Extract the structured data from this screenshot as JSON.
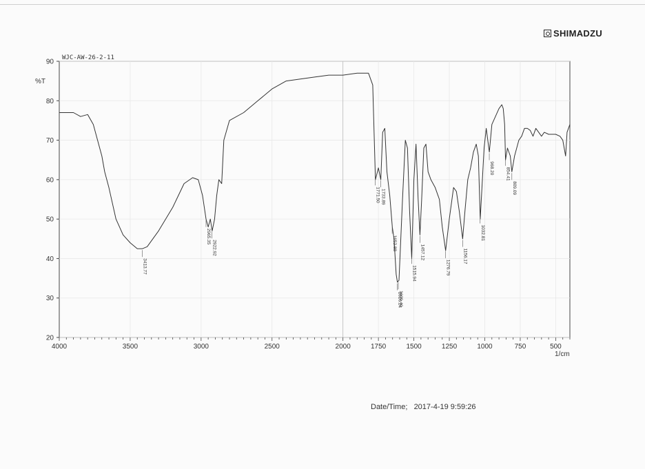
{
  "brand": "SHIMADZU",
  "logo_icon": "shimadzu-logo-icon",
  "footer": {
    "label": "Date/Time;",
    "value": "2017-4-19 9:59:26"
  },
  "chart_data": {
    "type": "line",
    "title": "WJC-AW-26-2-11",
    "ylabel": "%T",
    "xlabel": "1/cm",
    "xlim": [
      4000,
      400
    ],
    "ylim": [
      20,
      90
    ],
    "x_reversed": true,
    "x_ticks": [
      4000,
      3500,
      3000,
      2500,
      2000,
      1750,
      1500,
      1250,
      1000,
      750,
      500
    ],
    "y_ticks": [
      20,
      30,
      40,
      50,
      60,
      70,
      80,
      90
    ],
    "grid": true,
    "series": [
      {
        "color": "#333333",
        "points": [
          [
            4000,
            77
          ],
          [
            3900,
            77
          ],
          [
            3850,
            76
          ],
          [
            3800,
            76.5
          ],
          [
            3760,
            74
          ],
          [
            3730,
            70
          ],
          [
            3700,
            66
          ],
          [
            3680,
            62
          ],
          [
            3650,
            58
          ],
          [
            3600,
            50
          ],
          [
            3550,
            46
          ],
          [
            3500,
            44
          ],
          [
            3450,
            42.5
          ],
          [
            3413,
            42.5
          ],
          [
            3380,
            43
          ],
          [
            3300,
            47
          ],
          [
            3200,
            53
          ],
          [
            3120,
            59
          ],
          [
            3060,
            60.5
          ],
          [
            3020,
            60
          ],
          [
            2990,
            56
          ],
          [
            2965,
            50
          ],
          [
            2950,
            48
          ],
          [
            2935,
            50
          ],
          [
            2922,
            47
          ],
          [
            2905,
            50
          ],
          [
            2890,
            56
          ],
          [
            2875,
            60
          ],
          [
            2855,
            59
          ],
          [
            2840,
            70
          ],
          [
            2800,
            75
          ],
          [
            2700,
            77
          ],
          [
            2600,
            80
          ],
          [
            2500,
            83
          ],
          [
            2400,
            85
          ],
          [
            2300,
            85.5
          ],
          [
            2200,
            86
          ],
          [
            2100,
            86.5
          ],
          [
            2000,
            86.5
          ],
          [
            1900,
            87
          ],
          [
            1820,
            87
          ],
          [
            1790,
            84
          ],
          [
            1771,
            60
          ],
          [
            1750,
            63
          ],
          [
            1733,
            60
          ],
          [
            1720,
            72
          ],
          [
            1705,
            73
          ],
          [
            1690,
            62
          ],
          [
            1670,
            56
          ],
          [
            1652,
            48
          ],
          [
            1640,
            45
          ],
          [
            1625,
            36
          ],
          [
            1616,
            34
          ],
          [
            1605,
            34.5
          ],
          [
            1580,
            55
          ],
          [
            1560,
            70
          ],
          [
            1545,
            68
          ],
          [
            1530,
            52
          ],
          [
            1515,
            40
          ],
          [
            1500,
            60
          ],
          [
            1485,
            69
          ],
          [
            1470,
            55
          ],
          [
            1457,
            46
          ],
          [
            1445,
            55
          ],
          [
            1430,
            68
          ],
          [
            1415,
            69
          ],
          [
            1400,
            62
          ],
          [
            1380,
            60
          ],
          [
            1350,
            58
          ],
          [
            1320,
            55
          ],
          [
            1300,
            48
          ],
          [
            1276,
            42
          ],
          [
            1250,
            50
          ],
          [
            1220,
            58
          ],
          [
            1200,
            57
          ],
          [
            1180,
            52
          ],
          [
            1156,
            45
          ],
          [
            1140,
            52
          ],
          [
            1120,
            60
          ],
          [
            1100,
            63
          ],
          [
            1080,
            67
          ],
          [
            1060,
            69
          ],
          [
            1045,
            66
          ],
          [
            1032,
            50
          ],
          [
            1020,
            58
          ],
          [
            1005,
            68
          ],
          [
            990,
            73
          ],
          [
            968,
            67
          ],
          [
            950,
            74
          ],
          [
            900,
            78
          ],
          [
            880,
            79
          ],
          [
            870,
            78
          ],
          [
            860,
            74
          ],
          [
            854,
            65
          ],
          [
            840,
            68
          ],
          [
            820,
            66
          ],
          [
            809,
            62
          ],
          [
            790,
            66
          ],
          [
            760,
            70
          ],
          [
            740,
            71
          ],
          [
            720,
            73
          ],
          [
            700,
            73
          ],
          [
            680,
            72.5
          ],
          [
            660,
            71
          ],
          [
            640,
            73
          ],
          [
            620,
            72
          ],
          [
            600,
            71
          ],
          [
            580,
            72
          ],
          [
            550,
            71.5
          ],
          [
            500,
            71.5
          ],
          [
            470,
            71
          ],
          [
            450,
            70
          ],
          [
            430,
            66
          ],
          [
            420,
            72
          ],
          [
            400,
            74
          ]
        ]
      }
    ],
    "annotations": [
      {
        "x": 3413.77,
        "label": "3413.77"
      },
      {
        "x": 2965.35,
        "label": "2965.35"
      },
      {
        "x": 2922.92,
        "label": "2922.92"
      },
      {
        "x": 1771.5,
        "label": "1771.50"
      },
      {
        "x": 1733.89,
        "label": "1733.89"
      },
      {
        "x": 1652.88,
        "label": "1652.88"
      },
      {
        "x": 1616.24,
        "label": "1616.24"
      },
      {
        "x": 1609.49,
        "label": "1609.49"
      },
      {
        "x": 1515.94,
        "label": "1515.94"
      },
      {
        "x": 1457.12,
        "label": "1457.12"
      },
      {
        "x": 1276.79,
        "label": "1276.79"
      },
      {
        "x": 1156.17,
        "label": "1156.17"
      },
      {
        "x": 1032.81,
        "label": "1032.81"
      },
      {
        "x": 968.2,
        "label": "968.20"
      },
      {
        "x": 854.41,
        "label": "854.41"
      },
      {
        "x": 809.09,
        "label": "809.09"
      }
    ]
  }
}
